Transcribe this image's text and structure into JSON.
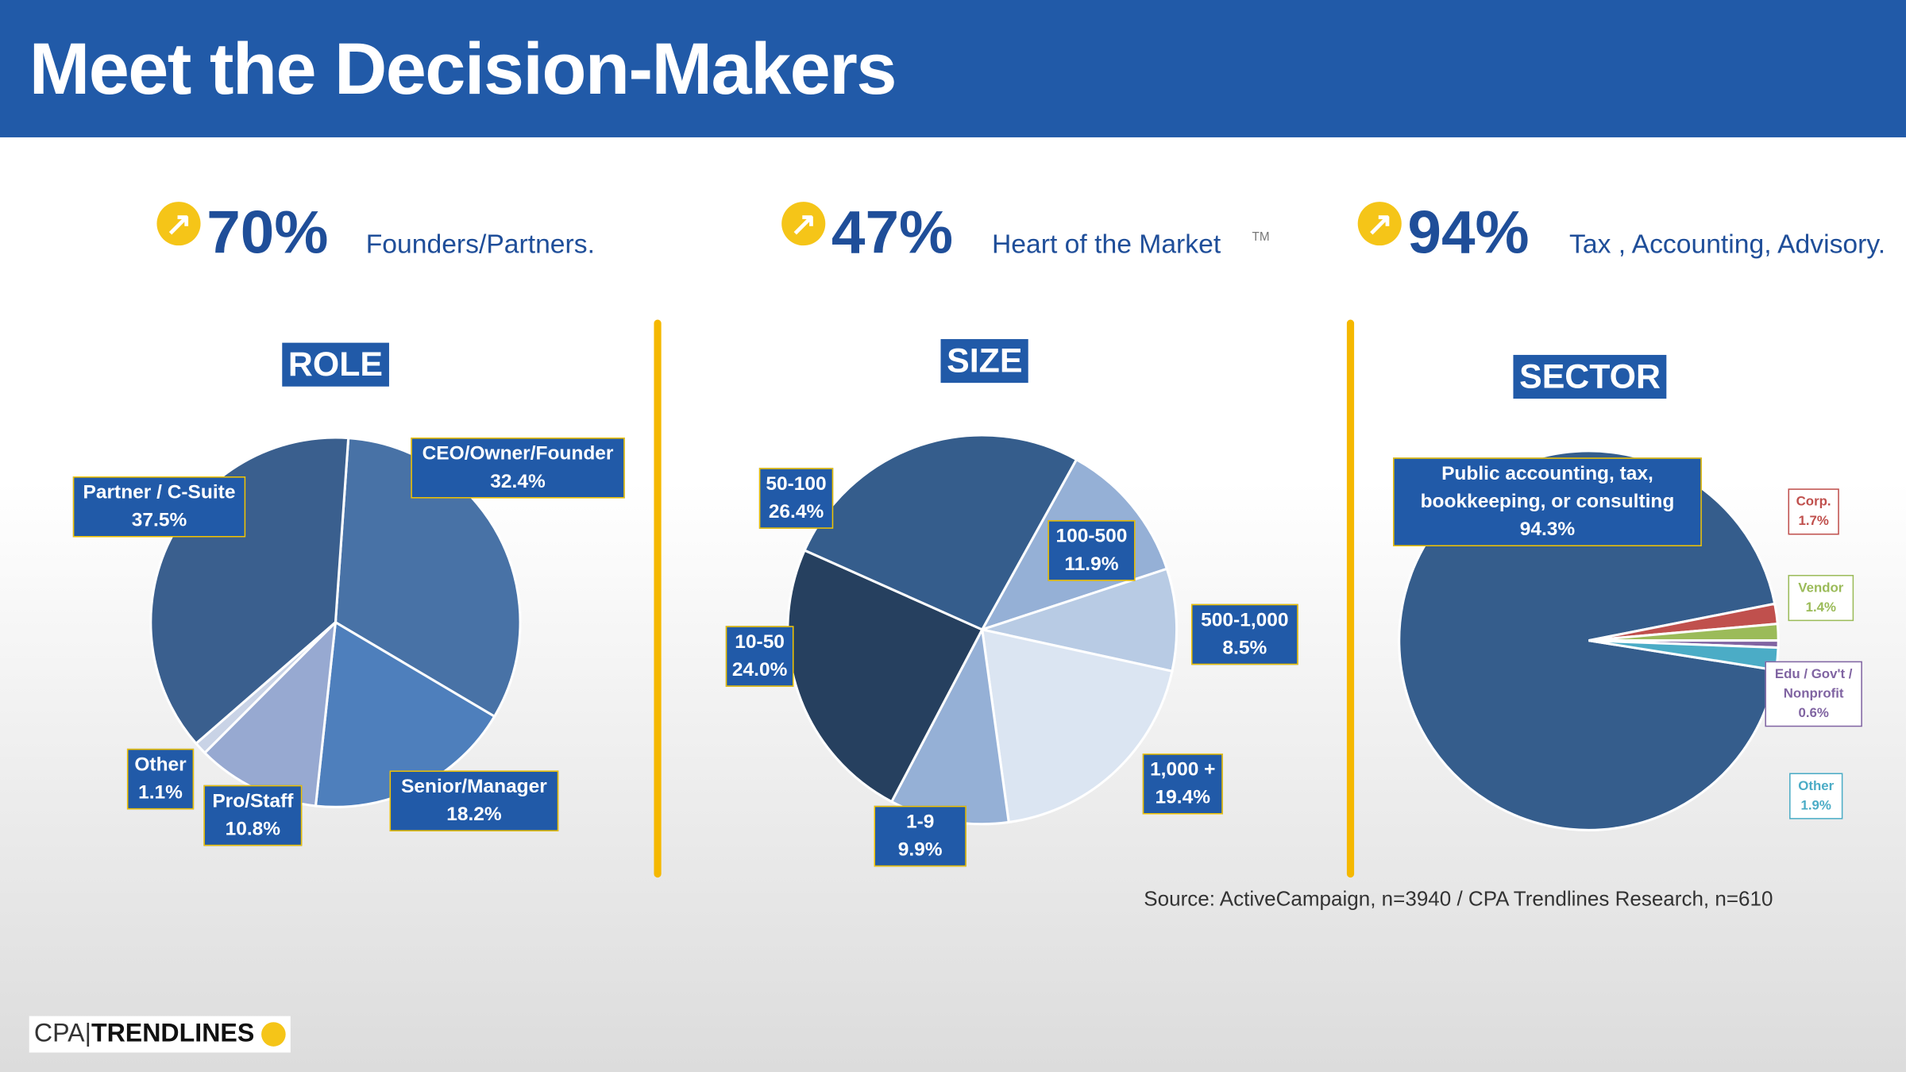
{
  "header": {
    "title": "Meet the Decision-Makers",
    "stats": [
      {
        "value": "70%",
        "text": "Founders/Partners."
      },
      {
        "value": "47%",
        "text": "Heart of the Market",
        "mark": "TM"
      },
      {
        "value": "94%",
        "text": "Tax , Accounting, Advisory."
      }
    ]
  },
  "chart_data": [
    {
      "type": "pie",
      "title": "ROLE",
      "categories": [
        "CEO/Owner/Founder",
        "Senior/Manager",
        "Pro/Staff",
        "Other",
        "Partner / C-Suite"
      ],
      "values": [
        32.4,
        18.2,
        10.8,
        1.1,
        37.5
      ],
      "value_labels": [
        "32.4%",
        "18.2%",
        "10.8%",
        "1.1%",
        "37.5%"
      ],
      "colors": [
        "#4872a6",
        "#4e7fbc",
        "#97a9d1",
        "#c9d3e6",
        "#3a5f8e"
      ]
    },
    {
      "type": "pie",
      "title": "SIZE",
      "categories": [
        "100-500",
        "500-1,000",
        "1,000 +",
        "1-9",
        "10-50",
        "50-100"
      ],
      "values": [
        11.9,
        8.5,
        19.4,
        9.9,
        24.0,
        26.4
      ],
      "value_labels": [
        "11.9%",
        "8.5%",
        "19.4%",
        "9.9%",
        "24.0%",
        "26.4%"
      ],
      "colors": [
        "#95b0d6",
        "#b8cbe4",
        "#dbe5f2",
        "#95b0d6",
        "#26405f",
        "#355d8c"
      ]
    },
    {
      "type": "pie",
      "title": "SECTOR",
      "categories": [
        "Public accounting, tax, bookkeeping, or consulting",
        "Corp.",
        "Vendor",
        "Edu / Gov't / Nonprofit",
        "Other"
      ],
      "values": [
        94.3,
        1.7,
        1.4,
        0.6,
        1.9
      ],
      "value_labels": [
        "94.3%",
        "1.7%",
        "1.4%",
        "0.6%",
        "1.9%"
      ],
      "colors": [
        "#355d8c",
        "#c0504d",
        "#9bbb59",
        "#8064a2",
        "#4bacc6"
      ]
    }
  ],
  "source": "Source: ActiveCampaign, n=3940 / CPA Trendlines Research, n=610",
  "logo": {
    "left": "CPA",
    "right": "TRENDLINES"
  }
}
